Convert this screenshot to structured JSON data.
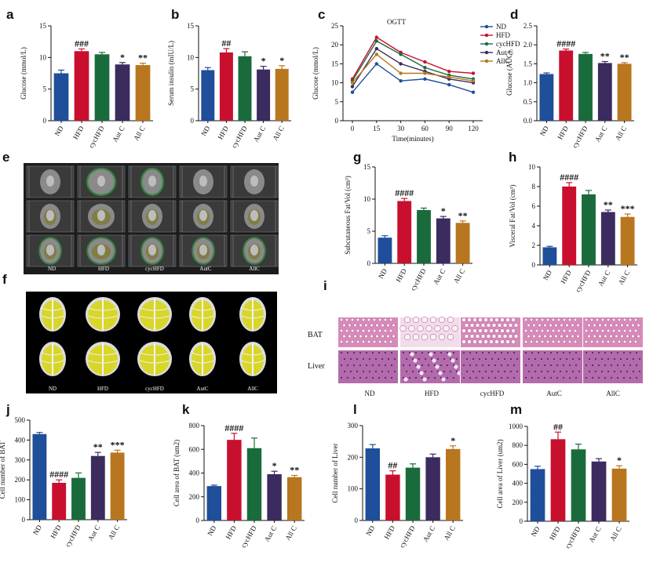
{
  "panels": {
    "e": {
      "label": "e",
      "groups": [
        "ND",
        "HFD",
        "cycHFD",
        "AutC",
        "AllC"
      ]
    },
    "f": {
      "label": "f",
      "groups": [
        "ND",
        "HFD",
        "cycHFD",
        "AutC",
        "AllC"
      ]
    },
    "i": {
      "label": "i",
      "rows": [
        "BAT",
        "Liver"
      ],
      "groups": [
        "ND",
        "HFD",
        "cycHFD",
        "AutC",
        "AllC"
      ]
    }
  },
  "colors": {
    "ND": "#1f4e9a",
    "HFD": "#c8102e",
    "cycHFD": "#1a6b3c",
    "AutC": "#3b2b5e",
    "AllC": "#b8761f"
  },
  "chart_data": [
    {
      "id": "a",
      "type": "bar",
      "categories": [
        "ND",
        "HFD",
        "cycHFD",
        "Aut C",
        "All C"
      ],
      "values": [
        7.5,
        11.0,
        10.5,
        8.9,
        8.8
      ],
      "errors": [
        0.5,
        0.35,
        0.3,
        0.3,
        0.3
      ],
      "sig": [
        "",
        "###",
        "",
        "*",
        "**"
      ],
      "ylabel": "Glucose (mmol/L)",
      "ylim": [
        0,
        15
      ],
      "yticks": [
        0,
        5,
        10,
        15
      ]
    },
    {
      "id": "b",
      "type": "bar",
      "categories": [
        "ND",
        "HFD",
        "cycHFD",
        "Aut C",
        "All C"
      ],
      "values": [
        8.0,
        10.8,
        10.2,
        8.1,
        8.2
      ],
      "errors": [
        0.4,
        0.6,
        0.7,
        0.5,
        0.5
      ],
      "sig": [
        "",
        "##",
        "",
        "*",
        "*"
      ],
      "ylabel": "Serum insulin (mIU/L)",
      "ylim": [
        0,
        15
      ],
      "yticks": [
        0,
        5,
        10,
        15
      ]
    },
    {
      "id": "c",
      "type": "line",
      "title": "OGTT",
      "x": [
        0,
        15,
        30,
        60,
        90,
        120
      ],
      "xlabel": "Time(minutes)",
      "ylabel": "Glucose (mmol/L)",
      "ylim": [
        0,
        25
      ],
      "yticks": [
        0,
        5,
        10,
        15,
        20,
        25
      ],
      "series": [
        {
          "name": "ND",
          "values": [
            7.5,
            15.0,
            10.5,
            11.0,
            9.5,
            7.5
          ],
          "color": "#1f4e9a"
        },
        {
          "name": "HFD",
          "values": [
            11.0,
            22.0,
            18.0,
            15.5,
            13.0,
            12.5
          ],
          "color": "#c8102e"
        },
        {
          "name": "cycHFD",
          "values": [
            10.5,
            21.0,
            17.5,
            14.0,
            12.0,
            11.0
          ],
          "color": "#1a6b3c"
        },
        {
          "name": "Aut C",
          "values": [
            9.0,
            19.0,
            15.0,
            13.0,
            11.0,
            10.0
          ],
          "color": "#3b2b5e"
        },
        {
          "name": "AllC",
          "values": [
            10.0,
            17.5,
            12.5,
            12.5,
            11.5,
            10.5
          ],
          "color": "#b8761f"
        }
      ]
    },
    {
      "id": "d",
      "type": "bar",
      "categories": [
        "ND",
        "HFD",
        "cycHFD",
        "Aut C",
        "All C"
      ],
      "values": [
        1.23,
        1.85,
        1.76,
        1.52,
        1.5
      ],
      "errors": [
        0.03,
        0.04,
        0.04,
        0.04,
        0.03
      ],
      "sig": [
        "",
        "####",
        "",
        "**",
        "**"
      ],
      "ylabel": "Glucose (AUC)",
      "ylim": [
        0,
        2.5
      ],
      "yticks": [
        0.0,
        0.5,
        1.0,
        1.5,
        2.0,
        2.5
      ]
    },
    {
      "id": "g",
      "type": "bar",
      "categories": [
        "ND",
        "HFD",
        "cycHFD",
        "Aut C",
        "All C"
      ],
      "values": [
        4.0,
        9.7,
        8.3,
        7.0,
        6.3
      ],
      "errors": [
        0.3,
        0.4,
        0.3,
        0.3,
        0.3
      ],
      "sig": [
        "",
        "####",
        "",
        "*",
        "**"
      ],
      "ylabel": "Subcutaneous Fat/Vol (cm³)",
      "ylim": [
        0,
        15
      ],
      "yticks": [
        0,
        5,
        10,
        15
      ]
    },
    {
      "id": "h",
      "type": "bar",
      "categories": [
        "ND",
        "HFD",
        "cycHFD",
        "Aut C",
        "All C"
      ],
      "values": [
        1.8,
        8.0,
        7.2,
        5.4,
        4.9
      ],
      "errors": [
        0.1,
        0.4,
        0.4,
        0.2,
        0.3
      ],
      "sig": [
        "",
        "####",
        "",
        "**",
        "***"
      ],
      "ylabel": "Visceral Fat/Vol (cm³)",
      "ylim": [
        0,
        10
      ],
      "yticks": [
        0,
        2,
        4,
        6,
        8,
        10
      ]
    },
    {
      "id": "j",
      "type": "bar",
      "categories": [
        "ND",
        "HFD",
        "cycHFD",
        "Aut C",
        "All C"
      ],
      "values": [
        430,
        185,
        210,
        320,
        337
      ],
      "errors": [
        8,
        15,
        25,
        18,
        12
      ],
      "sig": [
        "",
        "####",
        "",
        "**",
        "***"
      ],
      "ylabel": "Cell number of BAT",
      "ylim": [
        0,
        500
      ],
      "yticks": [
        0,
        100,
        200,
        300,
        400,
        500
      ]
    },
    {
      "id": "k",
      "type": "bar",
      "categories": [
        "ND",
        "HFD",
        "cycHFD",
        "Aut C",
        "All C"
      ],
      "values": [
        290,
        680,
        610,
        390,
        365
      ],
      "errors": [
        8,
        55,
        85,
        25,
        15
      ],
      "sig": [
        "",
        "####",
        "",
        "*",
        "**"
      ],
      "ylabel": "Cell area of BAT (um2)",
      "ylim": [
        0,
        800
      ],
      "yticks": [
        0,
        200,
        400,
        600,
        800
      ]
    },
    {
      "id": "l",
      "type": "bar",
      "categories": [
        "ND",
        "HFD",
        "cycHFD",
        "Aut C",
        "All C"
      ],
      "values": [
        228,
        145,
        167,
        200,
        226
      ],
      "errors": [
        12,
        12,
        12,
        10,
        10
      ],
      "sig": [
        "",
        "##",
        "",
        "",
        "*"
      ],
      "ylabel": "Cell number of Liver",
      "ylim": [
        0,
        300
      ],
      "yticks": [
        0,
        100,
        200,
        300
      ]
    },
    {
      "id": "m",
      "type": "bar",
      "categories": [
        "ND",
        "HFD",
        "cycHFD",
        "Aut C",
        "All C"
      ],
      "values": [
        550,
        865,
        758,
        630,
        555
      ],
      "errors": [
        30,
        75,
        55,
        30,
        30
      ],
      "sig": [
        "",
        "##",
        "",
        "",
        "*"
      ],
      "ylabel": "Cell area of Liver (um2)",
      "ylim": [
        0,
        1000
      ],
      "yticks": [
        0,
        200,
        400,
        600,
        800,
        1000
      ]
    }
  ]
}
